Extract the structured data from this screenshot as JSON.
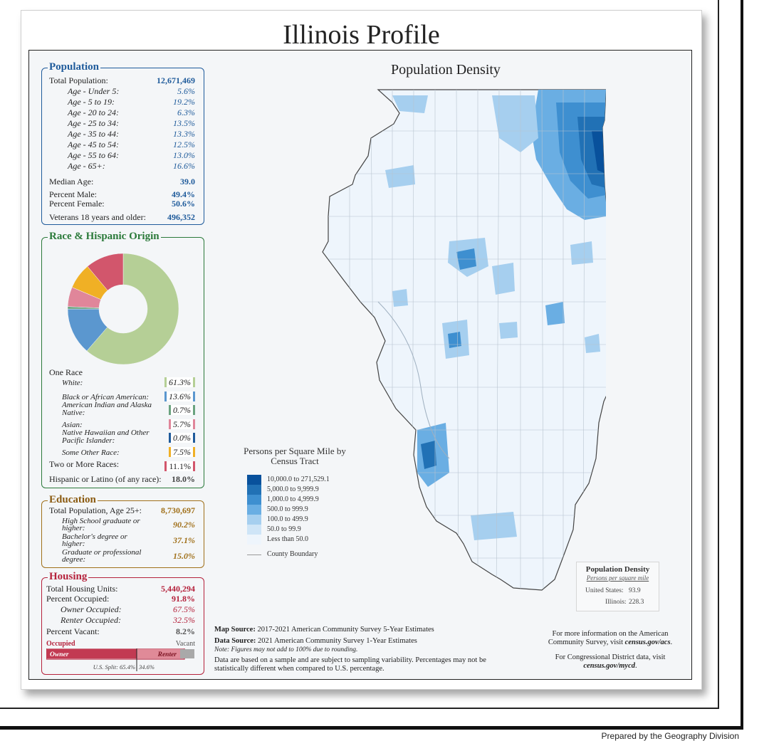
{
  "page": {
    "title": "Illinois Profile",
    "footer": "Prepared by the Geography Division"
  },
  "population": {
    "title": "Population",
    "total_label": "Total Population:",
    "total_value": "12,671,469",
    "ages": [
      {
        "label": "Age - Under 5:",
        "value": "5.6%"
      },
      {
        "label": "Age - 5 to 19:",
        "value": "19.2%"
      },
      {
        "label": "Age - 20 to 24:",
        "value": "6.3%"
      },
      {
        "label": "Age - 25 to 34:",
        "value": "13.5%"
      },
      {
        "label": "Age - 35 to 44:",
        "value": "13.3%"
      },
      {
        "label": "Age - 45 to 54:",
        "value": "12.5%"
      },
      {
        "label": "Age - 55 to 64:",
        "value": "13.0%"
      },
      {
        "label": "Age - 65+:",
        "value": "16.6%"
      }
    ],
    "median_label": "Median Age:",
    "median_value": "39.0",
    "male_label": "Percent Male:",
    "male_value": "49.4%",
    "female_label": "Percent Female:",
    "female_value": "50.6%",
    "veterans_label": "Veterans 18 years and older:",
    "veterans_value": "496,352"
  },
  "race": {
    "title": "Race & Hispanic Origin",
    "one_race_label": "One Race",
    "items": [
      {
        "label": "White:",
        "value": "61.3%",
        "color": "#b5cf96"
      },
      {
        "label": "Black or African American:",
        "value": "13.6%",
        "color": "#5b97cf"
      },
      {
        "label": "American Indian and Alaska Native:",
        "value": "0.7%",
        "color": "#6aa37f"
      },
      {
        "label": "Asian:",
        "value": "5.7%",
        "color": "#e0869a"
      },
      {
        "label": "Native Hawaiian and Other Pacific Islander:",
        "value": "0.0%",
        "color": "#1f5b9b"
      },
      {
        "label": "Some Other Race:",
        "value": "7.5%",
        "color": "#f0b025"
      },
      {
        "label": "Two or More Races:",
        "value": "11.1%",
        "color": "#d2566c"
      }
    ],
    "hispanic_label": "Hispanic or Latino (of any race):",
    "hispanic_value": "18.0%"
  },
  "education": {
    "title": "Education",
    "total_label": "Total Population, Age 25+:",
    "total_value": "8,730,697",
    "items": [
      {
        "label": "High School graduate or higher:",
        "value": "90.2%"
      },
      {
        "label": "Bachelor's degree or higher:",
        "value": "37.1%"
      },
      {
        "label": "Graduate or professional degree:",
        "value": "15.0%"
      }
    ]
  },
  "housing": {
    "title": "Housing",
    "units_label": "Total Housing Units:",
    "units_value": "5,440,294",
    "occupied_label": "Percent Occupied:",
    "occupied_value": "91.8%",
    "owner_label": "Owner Occupied:",
    "owner_value": "67.5%",
    "renter_label": "Renter Occupied:",
    "renter_value": "32.5%",
    "vacant_label": "Percent Vacant:",
    "vacant_value": "8.2%",
    "bar_occupied": "Occupied",
    "bar_vacant": "Vacant",
    "bar_owner": "Owner",
    "bar_renter": "Renter",
    "us_split": "U.S. Split: 65.4%",
    "us_split_renter": "34.6%"
  },
  "map": {
    "title": "Population Density",
    "legend_title": "Persons per Square Mile by Census Tract",
    "legend": [
      {
        "label": "10,000.0 to 271,529.1",
        "color": "#08519c"
      },
      {
        "label": "5,000.0 to 9,999.9",
        "color": "#2171b5"
      },
      {
        "label": "1,000.0 to 4,999.9",
        "color": "#3e8fd0"
      },
      {
        "label": "500.0 to 999.9",
        "color": "#6aaee3"
      },
      {
        "label": "100.0 to 499.9",
        "color": "#a6cfef"
      },
      {
        "label": "50.0 to 99.9",
        "color": "#cfe5f7"
      },
      {
        "label": "Less than 50.0",
        "color": "#eef5fc"
      }
    ],
    "county_boundary_label": "County Boundary",
    "density_box_title": "Population Density",
    "density_box_subtitle": "Persons per square mile",
    "us_label": "United States:",
    "us_value": "93.9",
    "il_label": "Illinois:",
    "il_value": "228.3"
  },
  "sources": {
    "map_source_label": "Map Source:",
    "map_source": "2017-2021 American Community Survey 5-Year Estimates",
    "data_source_label": "Data Source:",
    "data_source": "2021 American Community Survey 1-Year Estimates",
    "note": "Note: Figures may not add to 100% due to rounding.",
    "sampling": "Data are based on a sample and are subject to sampling variability. Percentages may not be statistically different when compared to U.S. percentage."
  },
  "more_info": {
    "acs_text": "For more information on the American Community Survey, visit",
    "acs_link": "census.gov/acs",
    "cd_text": "For Congressional District data, visit",
    "cd_link": "census.gov/mycd"
  }
}
